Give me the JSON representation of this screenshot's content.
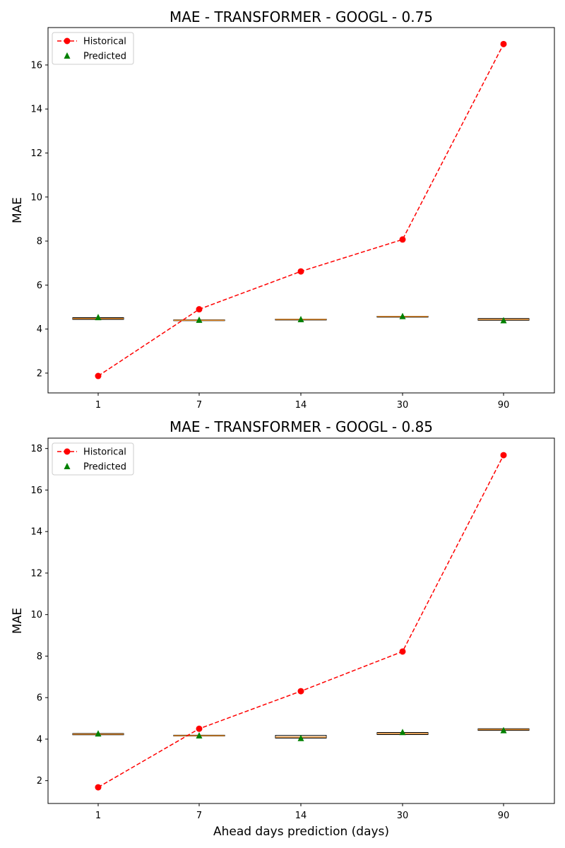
{
  "chart_data": [
    {
      "type": "line",
      "title": "MAE - TRANSFORMER - GOOGL - 0.75",
      "xlabel": "",
      "ylabel": "MAE",
      "categories": [
        "1",
        "7",
        "14",
        "30",
        "90"
      ],
      "ylim": [
        1.1,
        17.7
      ],
      "yticks": [
        2,
        4,
        6,
        8,
        10,
        12,
        14,
        16
      ],
      "grid": false,
      "legend_position": "top-left",
      "series": [
        {
          "name": "Historical",
          "style": "dashed-line-circle",
          "color": "#ff0000",
          "values": [
            1.87,
            4.9,
            6.62,
            8.07,
            16.95
          ]
        },
        {
          "name": "Predicted",
          "style": "triangle-marker",
          "color": "#008000",
          "values": [
            4.53,
            4.41,
            4.44,
            4.58,
            4.39
          ]
        }
      ],
      "boxes": [
        {
          "q1": 4.44,
          "median": 4.48,
          "q3": 4.52
        },
        {
          "q1": 4.39,
          "median": 4.4,
          "q3": 4.42
        },
        {
          "q1": 4.43,
          "median": 4.44,
          "q3": 4.45
        },
        {
          "q1": 4.56,
          "median": 4.57,
          "q3": 4.58
        },
        {
          "q1": 4.4,
          "median": 4.44,
          "q3": 4.48
        }
      ]
    },
    {
      "type": "line",
      "title": "MAE - TRANSFORMER - GOOGL - 0.85",
      "xlabel": "Ahead days prediction (days)",
      "ylabel": "MAE",
      "categories": [
        "1",
        "7",
        "14",
        "30",
        "90"
      ],
      "ylim": [
        0.9,
        18.5
      ],
      "yticks": [
        2,
        4,
        6,
        8,
        10,
        12,
        14,
        16,
        18
      ],
      "grid": false,
      "legend_position": "top-left",
      "series": [
        {
          "name": "Historical",
          "style": "dashed-line-circle",
          "color": "#ff0000",
          "values": [
            1.68,
            4.5,
            6.31,
            8.22,
            17.68
          ]
        },
        {
          "name": "Predicted",
          "style": "triangle-marker",
          "color": "#008000",
          "values": [
            4.26,
            4.17,
            4.04,
            4.33,
            4.42
          ]
        }
      ],
      "boxes": [
        {
          "q1": 4.21,
          "median": 4.24,
          "q3": 4.27
        },
        {
          "q1": 4.15,
          "median": 4.17,
          "q3": 4.19
        },
        {
          "q1": 4.05,
          "median": 4.1,
          "q3": 4.18
        },
        {
          "q1": 4.22,
          "median": 4.27,
          "q3": 4.32
        },
        {
          "q1": 4.42,
          "median": 4.46,
          "q3": 4.5
        }
      ]
    }
  ]
}
